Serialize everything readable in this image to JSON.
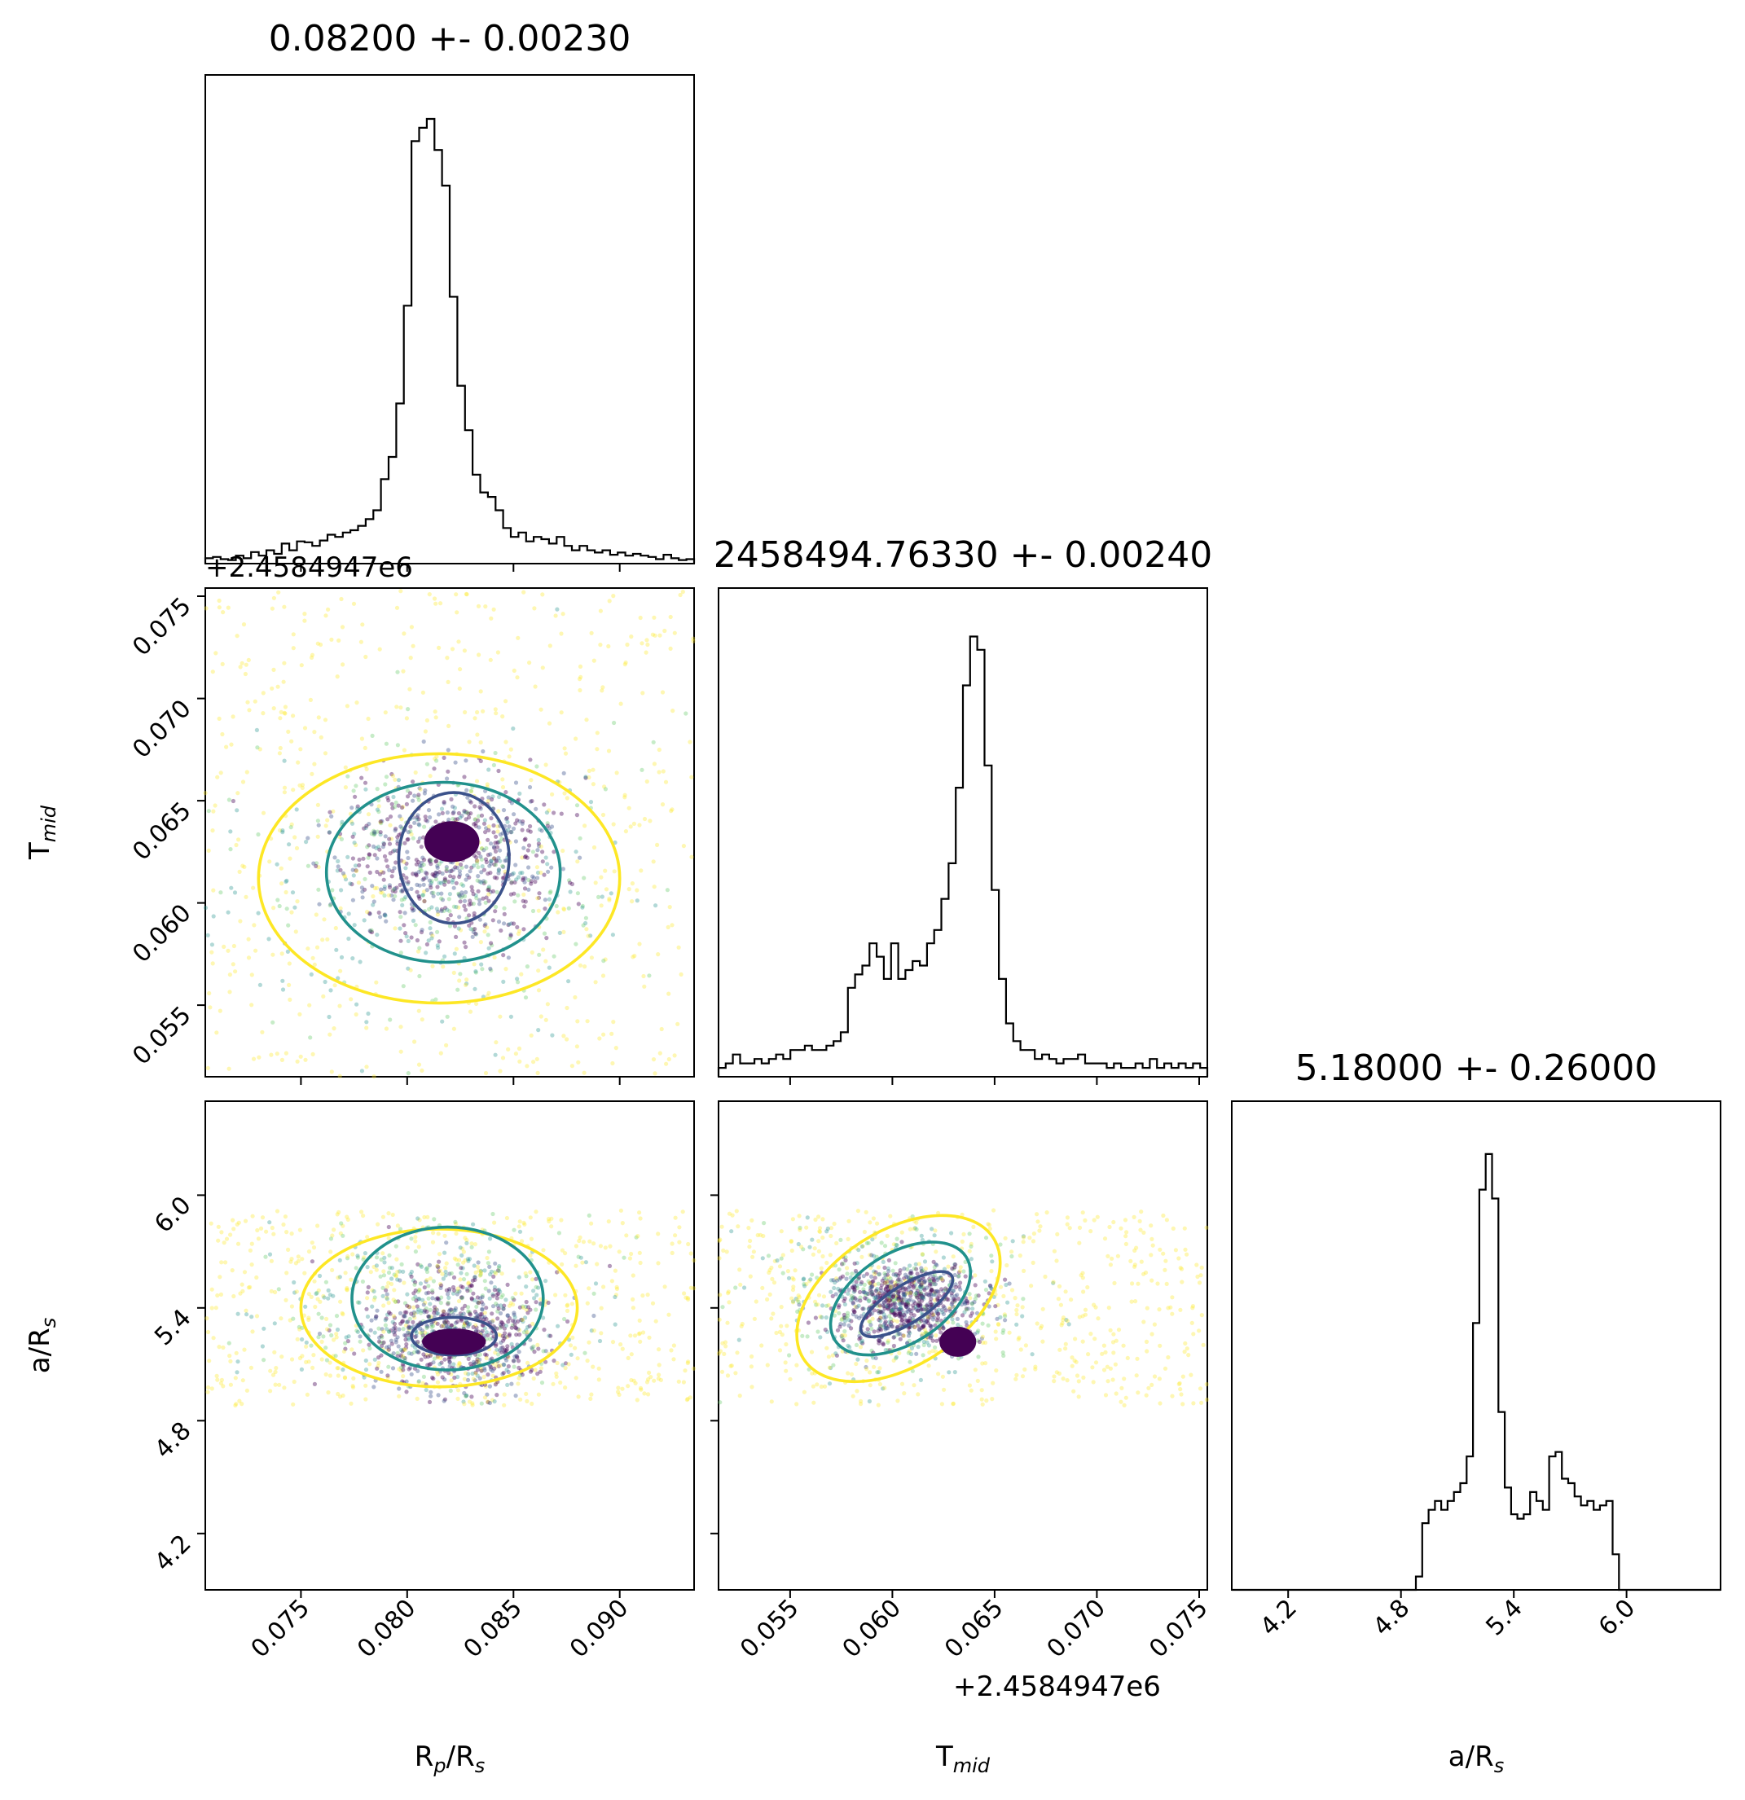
{
  "chart_data": {
    "type": "scatter",
    "subtype": "corner-plot",
    "params": [
      {
        "key": "rp",
        "label": "R",
        "label_sub": "p",
        "label_tail": "/R",
        "label_sub2": "s",
        "title": "0.08200 +- 0.00230",
        "range": [
          0.0705,
          0.0935
        ],
        "ticks": [
          0.075,
          0.08,
          0.085,
          0.09
        ],
        "tick_labels": [
          "0.075",
          "0.080",
          "0.085",
          "0.090"
        ],
        "offset_text": ""
      },
      {
        "key": "tmid",
        "label": "T",
        "label_sub": "mid",
        "label_tail": "",
        "label_sub2": "",
        "title": "2458494.76330 +- 0.00240",
        "range": [
          0.0515,
          0.0754
        ],
        "ticks": [
          0.055,
          0.06,
          0.065,
          0.07,
          0.075
        ],
        "tick_labels": [
          "0.055",
          "0.060",
          "0.065",
          "0.070",
          "0.075"
        ],
        "offset_text": "+2.4584947e6"
      },
      {
        "key": "ars",
        "label": "a/R",
        "label_sub": "s",
        "label_tail": "",
        "label_sub2": "",
        "title": "5.18000 +- 0.26000",
        "range": [
          3.9,
          6.5
        ],
        "ticks": [
          4.2,
          4.8,
          5.4,
          6.0
        ],
        "tick_labels": [
          "4.2",
          "4.8",
          "5.4",
          "6.0"
        ],
        "offset_text": ""
      }
    ],
    "histograms": [
      {
        "param": "rp",
        "lo": 0.0705,
        "hi": 0.0935,
        "heights": [
          0.012,
          0.015,
          0.01,
          0.008,
          0.018,
          0.012,
          0.026,
          0.018,
          0.03,
          0.022,
          0.045,
          0.03,
          0.05,
          0.048,
          0.04,
          0.052,
          0.065,
          0.06,
          0.07,
          0.075,
          0.085,
          0.1,
          0.12,
          0.19,
          0.24,
          0.36,
          0.58,
          0.95,
          0.98,
          1.0,
          0.93,
          0.85,
          0.6,
          0.4,
          0.3,
          0.2,
          0.16,
          0.15,
          0.12,
          0.08,
          0.06,
          0.07,
          0.05,
          0.06,
          0.055,
          0.045,
          0.06,
          0.04,
          0.03,
          0.04,
          0.03,
          0.025,
          0.03,
          0.02,
          0.025,
          0.018,
          0.022,
          0.018,
          0.015,
          0.01,
          0.02,
          0.012,
          0.008,
          0.01
        ]
      },
      {
        "param": "tmid",
        "lo": 0.0515,
        "hi": 0.0754,
        "heights": [
          0.02,
          0.03,
          0.05,
          0.03,
          0.03,
          0.04,
          0.03,
          0.04,
          0.05,
          0.04,
          0.06,
          0.06,
          0.07,
          0.06,
          0.06,
          0.07,
          0.08,
          0.1,
          0.2,
          0.23,
          0.25,
          0.3,
          0.27,
          0.22,
          0.3,
          0.22,
          0.24,
          0.26,
          0.25,
          0.3,
          0.33,
          0.4,
          0.48,
          0.65,
          0.88,
          0.99,
          0.96,
          0.7,
          0.42,
          0.22,
          0.12,
          0.08,
          0.06,
          0.06,
          0.04,
          0.05,
          0.04,
          0.03,
          0.04,
          0.04,
          0.05,
          0.03,
          0.03,
          0.03,
          0.02,
          0.03,
          0.02,
          0.02,
          0.03,
          0.02,
          0.04,
          0.02,
          0.03,
          0.02,
          0.03,
          0.02,
          0.03,
          0.02
        ]
      },
      {
        "param": "ars",
        "lo": 3.9,
        "hi": 6.5,
        "heights": [
          0,
          0,
          0,
          0,
          0,
          0,
          0,
          0,
          0,
          0,
          0,
          0,
          0,
          0,
          0,
          0,
          0,
          0,
          0,
          0,
          0,
          0,
          0,
          0,
          0,
          0,
          0,
          0,
          0,
          0.03,
          0.15,
          0.18,
          0.2,
          0.18,
          0.2,
          0.22,
          0.24,
          0.3,
          0.6,
          0.9,
          0.98,
          0.88,
          0.4,
          0.23,
          0.17,
          0.16,
          0.17,
          0.22,
          0.2,
          0.18,
          0.3,
          0.31,
          0.25,
          0.24,
          0.21,
          0.19,
          0.2,
          0.18,
          0.19,
          0.2,
          0.08,
          0,
          0,
          0,
          0,
          0,
          0,
          0,
          0,
          0,
          0,
          0,
          0,
          0,
          0,
          0,
          0
        ]
      }
    ],
    "scatter_panels": [
      {
        "x": "rp",
        "y": "tmid",
        "levels": [
          {
            "color": "#fde725",
            "cx": 0.0815,
            "cy": 0.0612,
            "rx": 0.0085,
            "ry": 0.0061
          },
          {
            "color": "#21918c",
            "cx": 0.0817,
            "cy": 0.0615,
            "rx": 0.0055,
            "ry": 0.0044
          },
          {
            "color": "#3b528b",
            "cx": 0.0822,
            "cy": 0.0622,
            "rx": 0.0026,
            "ry": 0.0032
          }
        ],
        "core": {
          "cx": 0.0821,
          "cy": 0.063,
          "rx": 0.0013,
          "ry": 0.001
        }
      },
      {
        "x": "rp",
        "y": "ars",
        "levels": [
          {
            "color": "#fde725",
            "cx": 0.0815,
            "cy": 5.4,
            "rx": 0.0065,
            "ry": 0.42
          },
          {
            "color": "#21918c",
            "cx": 0.0819,
            "cy": 5.45,
            "rx": 0.0045,
            "ry": 0.38
          },
          {
            "color": "#3b528b",
            "cx": 0.0822,
            "cy": 5.25,
            "rx": 0.002,
            "ry": 0.1
          }
        ],
        "core": {
          "cx": 0.0822,
          "cy": 5.22,
          "rx": 0.0015,
          "ry": 0.07
        }
      },
      {
        "x": "tmid",
        "y": "ars",
        "levels": [
          {
            "color": "#fde725",
            "cx": 0.0603,
            "cy": 5.45,
            "rx": 0.0055,
            "ry": 0.36
          },
          {
            "color": "#21918c",
            "cx": 0.0604,
            "cy": 5.45,
            "rx": 0.0038,
            "ry": 0.24
          },
          {
            "color": "#3b528b",
            "cx": 0.0607,
            "cy": 5.42,
            "rx": 0.0026,
            "ry": 0.1
          }
        ],
        "core": {
          "cx": 0.0632,
          "cy": 5.22,
          "rx": 0.0009,
          "ry": 0.08
        }
      }
    ],
    "colors": {
      "outer_level": "#fde725",
      "middle_level": "#21918c",
      "inner_level": "#3b528b",
      "core": "#440154",
      "points": [
        "#440154",
        "#3b528b",
        "#21918c",
        "#5ec962",
        "#fde725"
      ]
    },
    "grid": false,
    "legend": "none"
  }
}
